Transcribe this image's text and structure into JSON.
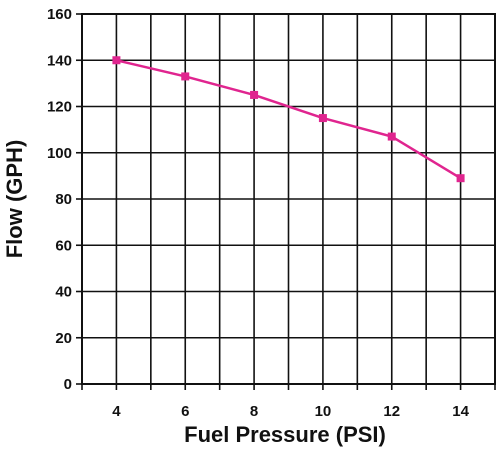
{
  "chart_data": {
    "type": "line",
    "title": "",
    "xlabel": "Fuel Pressure (PSI)",
    "ylabel": "Flow (GPH)",
    "x_ticks": [
      "4",
      "6",
      "8",
      "10",
      "12",
      "14"
    ],
    "y_ticks": [
      "0",
      "20",
      "40",
      "60",
      "80",
      "100",
      "120",
      "140",
      "160"
    ],
    "xlim": [
      3,
      15
    ],
    "ylim": [
      0,
      160
    ],
    "grid": true,
    "legend": "none",
    "series": [
      {
        "color": "#e0258f",
        "marker": "square",
        "x": [
          4,
          6,
          8,
          10,
          12,
          14
        ],
        "y": [
          140,
          133,
          125,
          115,
          107,
          89
        ]
      }
    ]
  }
}
